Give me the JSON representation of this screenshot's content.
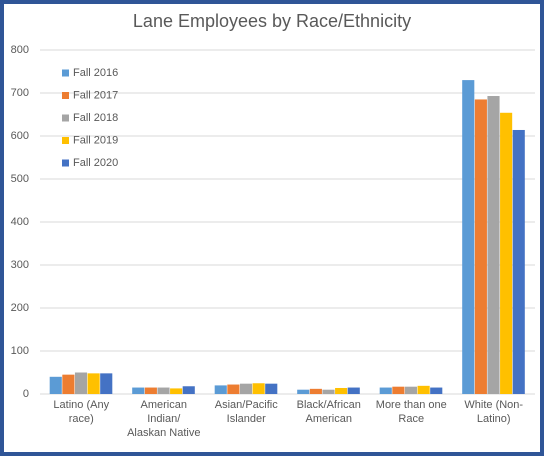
{
  "chart_data": {
    "type": "bar",
    "title": "Lane Employees by Race/Ethnicity",
    "categories": [
      "Latino (Any race)",
      "American Indian/ Alaskan Native",
      "Asian/Pacific Islander",
      "Black/African American",
      "More than one Race",
      "White (Non-Latino)"
    ],
    "series": [
      {
        "name": "Fall 2016",
        "color": "#5b9bd5",
        "values": [
          40,
          15,
          20,
          10,
          15,
          730
        ]
      },
      {
        "name": "Fall 2017",
        "color": "#ed7d31",
        "values": [
          45,
          15,
          22,
          12,
          17,
          685
        ]
      },
      {
        "name": "Fall 2018",
        "color": "#a5a5a5",
        "values": [
          50,
          15,
          24,
          10,
          17,
          693
        ]
      },
      {
        "name": "Fall 2019",
        "color": "#ffc000",
        "values": [
          48,
          13,
          25,
          14,
          19,
          654
        ]
      },
      {
        "name": "Fall 2020",
        "color": "#4472c4",
        "values": [
          48,
          18,
          24,
          15,
          15,
          614
        ]
      }
    ],
    "ylim": [
      0,
      800
    ],
    "yticks": [
      0,
      100,
      200,
      300,
      400,
      500,
      600,
      700,
      800
    ],
    "grid": true,
    "legend": "top-left"
  }
}
